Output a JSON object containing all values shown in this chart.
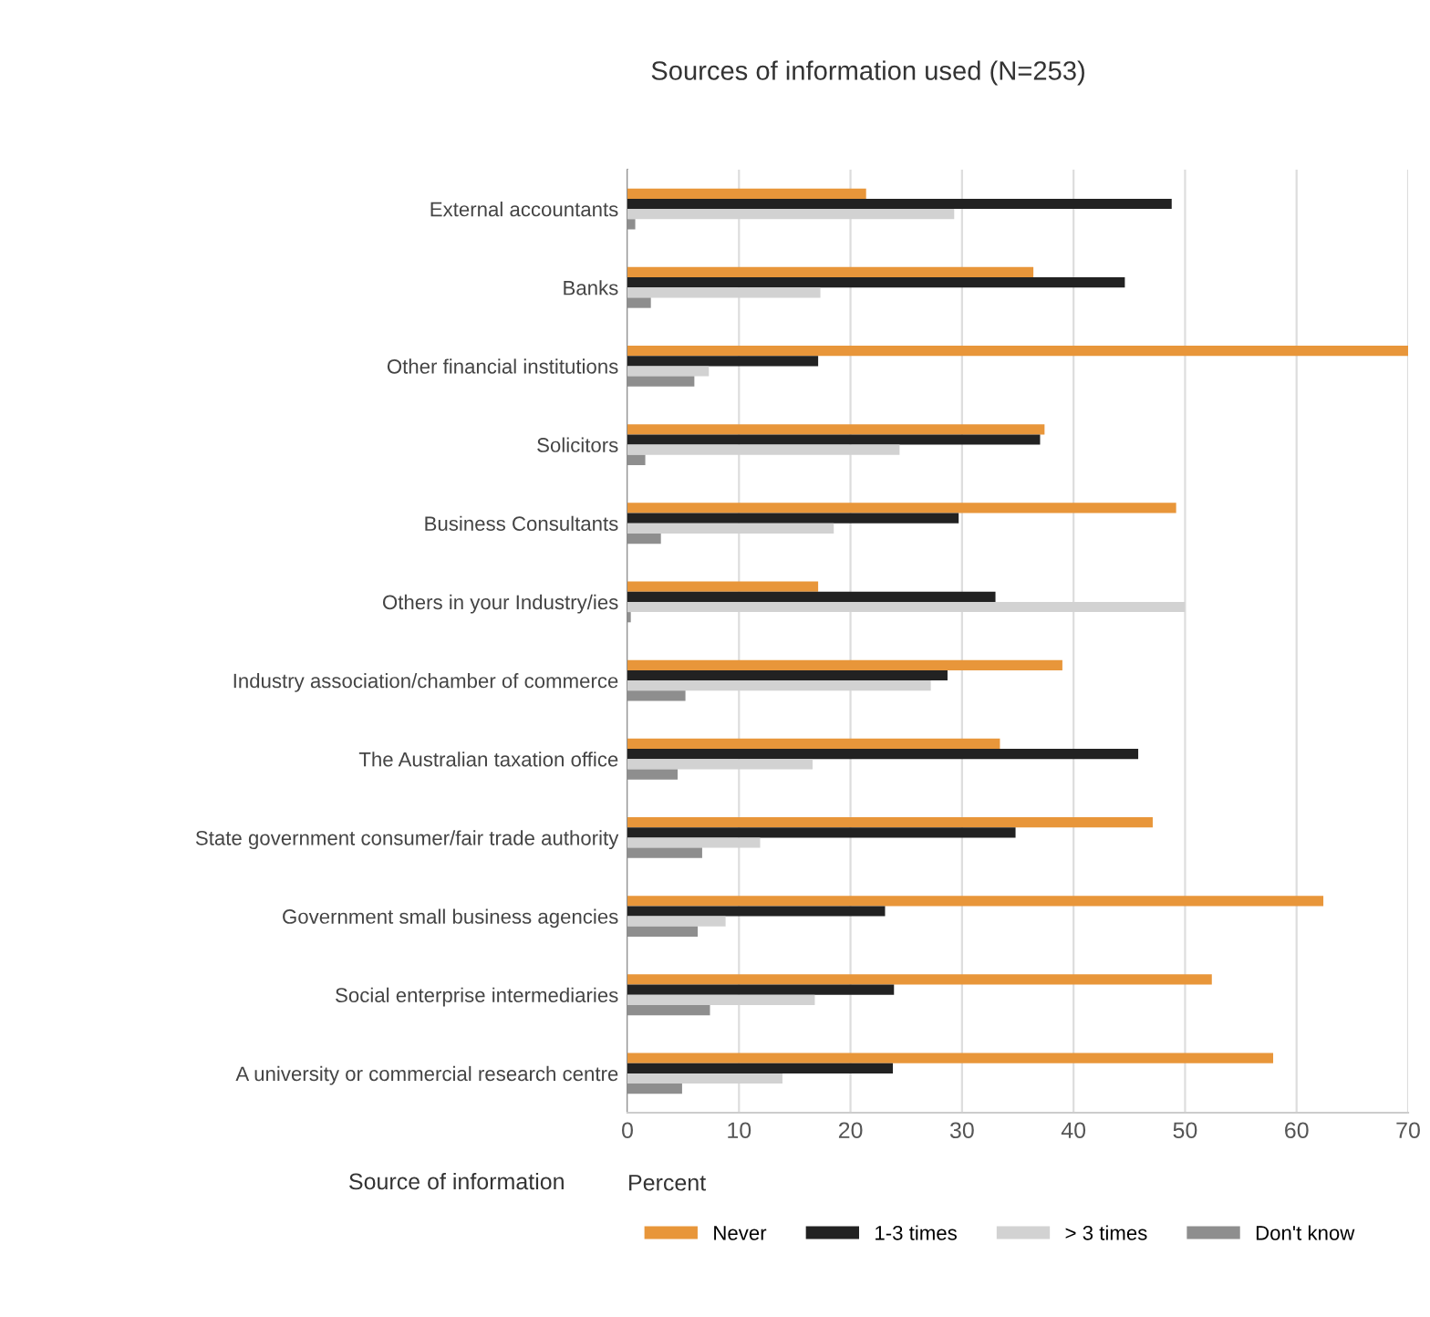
{
  "chart_data": {
    "type": "bar",
    "orientation": "horizontal",
    "title": "Sources of information used (N=253)",
    "xlabel": "Percent",
    "ylabel": "Source of information",
    "categories": [
      "External accountants",
      "Banks",
      "Other financial institutions",
      "Solicitors",
      "Business Consultants",
      "Others in your Industry/ies",
      "Industry association/chamber of commerce",
      "The Australian taxation office",
      "State government consumer/fair trade authority",
      "Government small business agencies",
      "Social enterprise intermediaries",
      "A university or commercial research centre"
    ],
    "series": [
      {
        "name": "Never",
        "color": "#e8963a",
        "values": [
          21.4,
          36.4,
          70,
          37.4,
          49.2,
          17.1,
          39.0,
          33.4,
          47.1,
          62.4,
          52.4,
          57.9
        ]
      },
      {
        "name": "1-3 times",
        "color": "#222222",
        "values": [
          48.8,
          44.6,
          17.1,
          37.0,
          29.7,
          33.0,
          28.7,
          45.8,
          34.8,
          23.1,
          23.9,
          23.8
        ]
      },
      {
        "name": "> 3 times",
        "color": "#d2d2d2",
        "values": [
          29.3,
          17.3,
          7.3,
          24.4,
          18.5,
          50.0,
          27.2,
          16.6,
          11.9,
          8.8,
          16.8,
          13.9
        ]
      },
      {
        "name": "Don't know",
        "color": "#8e8e8e",
        "values": [
          0.7,
          2.1,
          6.0,
          1.6,
          3.0,
          0.3,
          5.2,
          4.5,
          6.7,
          6.3,
          7.4,
          4.9
        ]
      }
    ],
    "xlim": [
      0,
      70
    ],
    "xticks": [
      0,
      10,
      20,
      30,
      40,
      50,
      60,
      70
    ],
    "grid": "x",
    "legend": "bottom"
  }
}
